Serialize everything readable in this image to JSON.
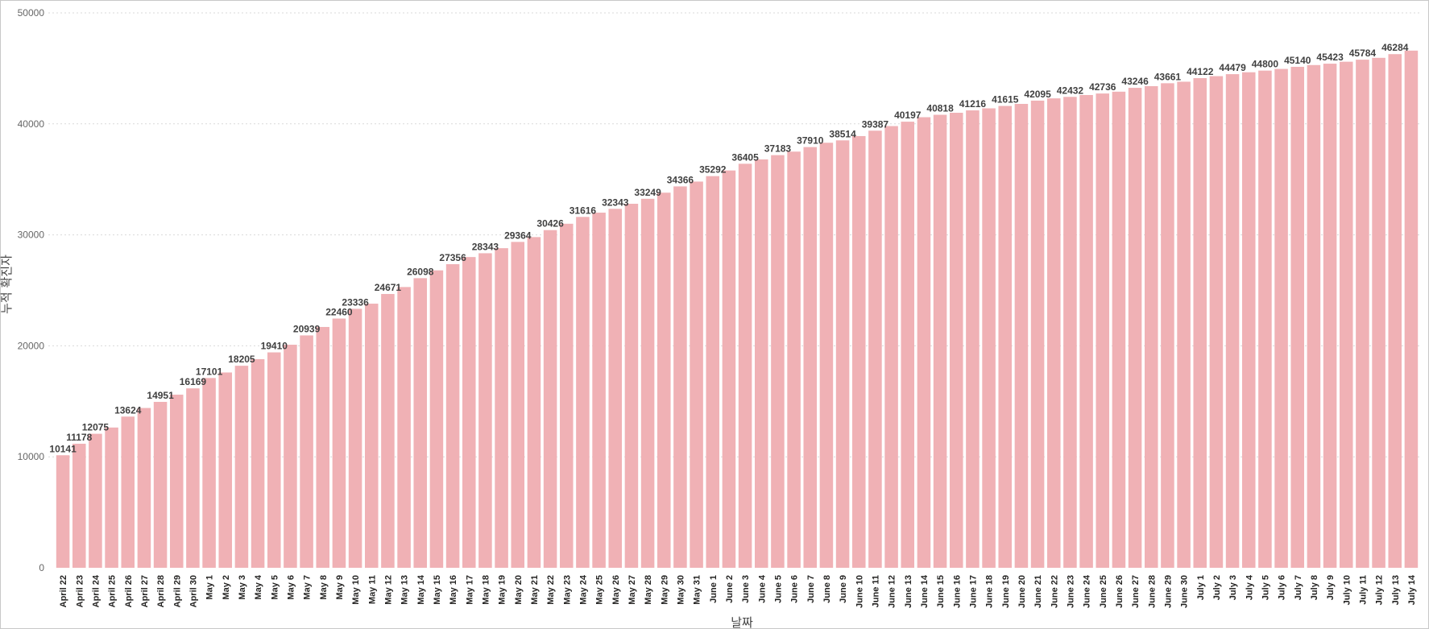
{
  "chart_data": {
    "type": "bar",
    "xlabel": "날짜",
    "ylabel": "누적 확진자",
    "ylim": [
      0,
      50000
    ],
    "yticks": [
      0,
      10000,
      20000,
      30000,
      40000,
      50000
    ],
    "grid": true,
    "colors": {
      "bar": "#f0b1b5",
      "highlight": "#d64550"
    },
    "highlight_index": 84,
    "categories": [
      "April 22",
      "April 23",
      "April 24",
      "April 25",
      "April 26",
      "April 27",
      "April 28",
      "April 29",
      "April 30",
      "May 1",
      "May 2",
      "May 3",
      "May 4",
      "May 5",
      "May 6",
      "May 7",
      "May 8",
      "May 9",
      "May 10",
      "May 11",
      "May 12",
      "May 13",
      "May 14",
      "May 15",
      "May 16",
      "May 17",
      "May 18",
      "May 19",
      "May 20",
      "May 21",
      "May 22",
      "May 23",
      "May 24",
      "May 25",
      "May 26",
      "May 27",
      "May 28",
      "May 29",
      "May 30",
      "May 31",
      "June 1",
      "June 2",
      "June 3",
      "June 4",
      "June 5",
      "June 6",
      "June 7",
      "June 8",
      "June 9",
      "June 10",
      "June 11",
      "June 12",
      "June 13",
      "June 14",
      "June 15",
      "June 16",
      "June 17",
      "June 18",
      "June 19",
      "June 20",
      "June 21",
      "June 22",
      "June 23",
      "June 24",
      "June 25",
      "June 26",
      "June 27",
      "June 28",
      "June 29",
      "June 30",
      "July 1",
      "July 2",
      "July 3",
      "July 4",
      "July 5",
      "July 6",
      "July 7",
      "July 8",
      "July 9",
      "July 10",
      "July 11",
      "July 12",
      "July 13",
      "July 14"
    ],
    "values": [
      10141,
      11178,
      12075,
      12640,
      13624,
      14400,
      14951,
      15600,
      16169,
      17101,
      17600,
      18205,
      18800,
      19410,
      20100,
      20939,
      21700,
      22460,
      23336,
      23800,
      24671,
      25300,
      26098,
      26800,
      27356,
      28000,
      28343,
      28800,
      29364,
      29800,
      30426,
      31000,
      31616,
      32000,
      32343,
      32800,
      33249,
      33800,
      34366,
      34800,
      35292,
      35800,
      36405,
      36800,
      37183,
      37500,
      37910,
      38300,
      38514,
      38900,
      39387,
      39800,
      40197,
      40600,
      40818,
      41000,
      41216,
      41400,
      41615,
      41800,
      42095,
      42300,
      42432,
      42600,
      42736,
      42900,
      43246,
      43400,
      43661,
      43800,
      44122,
      44300,
      44479,
      44650,
      44800,
      44950,
      45140,
      45300,
      45423,
      45600,
      45784,
      45950,
      46284,
      46600
    ],
    "data_labels": [
      {
        "i": 0,
        "text": "10141"
      },
      {
        "i": 1,
        "text": "11178"
      },
      {
        "i": 2,
        "text": "12075"
      },
      {
        "i": 4,
        "text": "13624"
      },
      {
        "i": 6,
        "text": "14951"
      },
      {
        "i": 8,
        "text": "16169"
      },
      {
        "i": 9,
        "text": "17101"
      },
      {
        "i": 11,
        "text": "18205"
      },
      {
        "i": 13,
        "text": "19410"
      },
      {
        "i": 15,
        "text": "20939"
      },
      {
        "i": 17,
        "text": "22460"
      },
      {
        "i": 18,
        "text": "23336"
      },
      {
        "i": 20,
        "text": "24671"
      },
      {
        "i": 22,
        "text": "26098"
      },
      {
        "i": 24,
        "text": "27356"
      },
      {
        "i": 26,
        "text": "28343"
      },
      {
        "i": 28,
        "text": "29364"
      },
      {
        "i": 30,
        "text": "30426"
      },
      {
        "i": 32,
        "text": "31616"
      },
      {
        "i": 34,
        "text": "32343"
      },
      {
        "i": 36,
        "text": "33249"
      },
      {
        "i": 38,
        "text": "34366"
      },
      {
        "i": 40,
        "text": "35292"
      },
      {
        "i": 42,
        "text": "36405"
      },
      {
        "i": 44,
        "text": "37183"
      },
      {
        "i": 46,
        "text": "37910"
      },
      {
        "i": 48,
        "text": "38514"
      },
      {
        "i": 50,
        "text": "39387"
      },
      {
        "i": 52,
        "text": "40197"
      },
      {
        "i": 54,
        "text": "40818"
      },
      {
        "i": 56,
        "text": "41216"
      },
      {
        "i": 58,
        "text": "41615"
      },
      {
        "i": 60,
        "text": "42095"
      },
      {
        "i": 62,
        "text": "42432"
      },
      {
        "i": 64,
        "text": "42736"
      },
      {
        "i": 66,
        "text": "43246"
      },
      {
        "i": 68,
        "text": "43661"
      },
      {
        "i": 70,
        "text": "44122"
      },
      {
        "i": 72,
        "text": "44479"
      },
      {
        "i": 74,
        "text": "44800"
      },
      {
        "i": 76,
        "text": "45140"
      },
      {
        "i": 78,
        "text": "45423"
      },
      {
        "i": 80,
        "text": "45784"
      },
      {
        "i": 82,
        "text": "46284"
      }
    ]
  }
}
